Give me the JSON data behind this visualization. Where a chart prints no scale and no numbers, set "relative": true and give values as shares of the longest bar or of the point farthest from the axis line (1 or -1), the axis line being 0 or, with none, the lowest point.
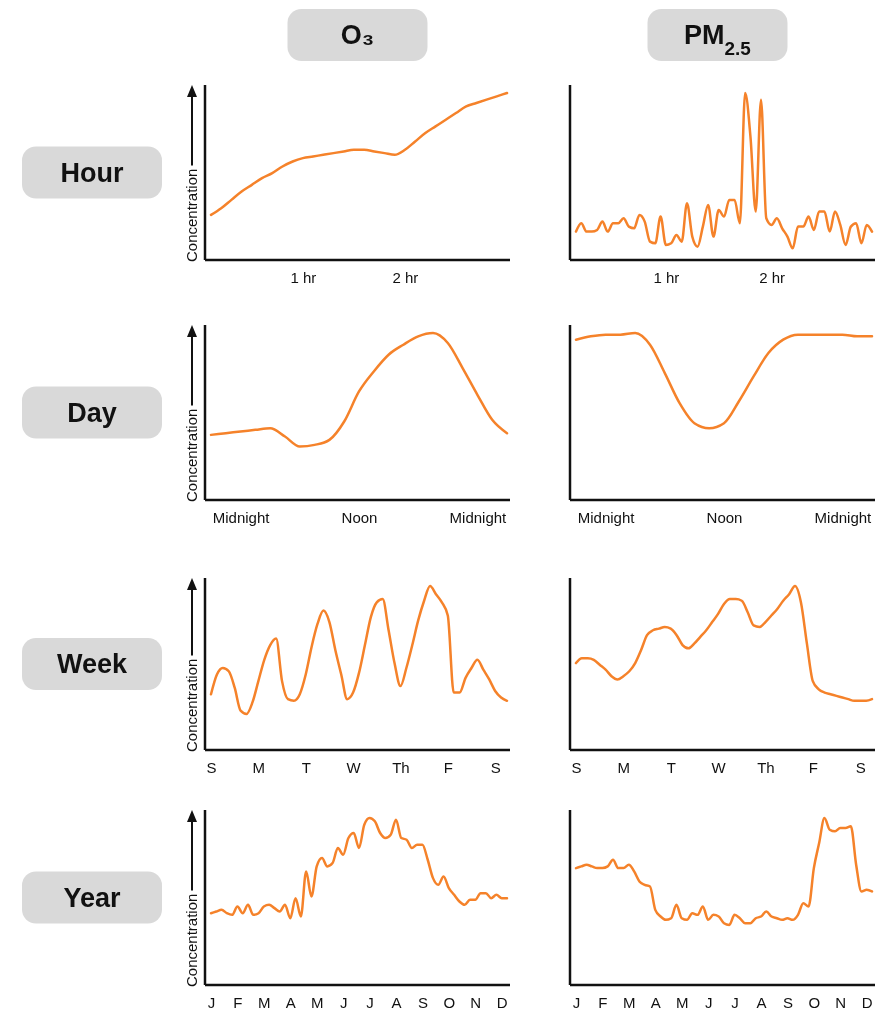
{
  "chart_data": [
    {
      "type": "line",
      "relative": true,
      "title": "O₃",
      "annotations": [
        "Hour"
      ],
      "ylabel": "Concentration",
      "tick_labels": "x",
      "color": "#f5822a",
      "categories": [
        null,
        null,
        null,
        null,
        null,
        null,
        null,
        null,
        null,
        "1 hr",
        null,
        null,
        null,
        null,
        null,
        null,
        null,
        null,
        null,
        "2 hr",
        null,
        null,
        null,
        null,
        null,
        null,
        null,
        null,
        null,
        null
      ],
      "values": [
        0.27,
        0.31,
        0.36,
        0.41,
        0.45,
        0.49,
        0.52,
        0.56,
        0.59,
        0.61,
        0.62,
        0.63,
        0.64,
        0.65,
        0.66,
        0.66,
        0.65,
        0.64,
        0.63,
        0.66,
        0.71,
        0.76,
        0.8,
        0.84,
        0.88,
        0.92,
        0.94,
        0.96,
        0.98,
        1.0
      ]
    },
    {
      "type": "line",
      "relative": true,
      "title": "PM$_{2.5}$",
      "tick_labels": "x",
      "color": "#f5822a",
      "categories": [
        null,
        null,
        null,
        null,
        null,
        null,
        null,
        null,
        null,
        null,
        null,
        null,
        null,
        null,
        null,
        null,
        null,
        "1 hr",
        null,
        null,
        null,
        null,
        null,
        null,
        null,
        null,
        null,
        null,
        null,
        null,
        null,
        null,
        null,
        null,
        null,
        null,
        null,
        "2 hr",
        null,
        null,
        null,
        null,
        null,
        null,
        null,
        null,
        null,
        null,
        null,
        null,
        null,
        null,
        null,
        null,
        null,
        null,
        null
      ],
      "values": [
        0.17,
        0.22,
        0.17,
        0.17,
        0.18,
        0.23,
        0.17,
        0.22,
        0.22,
        0.25,
        0.2,
        0.19,
        0.27,
        0.23,
        0.11,
        0.1,
        0.26,
        0.09,
        0.1,
        0.15,
        0.11,
        0.34,
        0.14,
        0.08,
        0.2,
        0.33,
        0.14,
        0.3,
        0.26,
        0.36,
        0.36,
        0.22,
        1.0,
        0.74,
        0.29,
        0.96,
        0.25,
        0.21,
        0.25,
        0.19,
        0.14,
        0.07,
        0.2,
        0.2,
        0.26,
        0.18,
        0.29,
        0.29,
        0.17,
        0.29,
        0.21,
        0.09,
        0.2,
        0.22,
        0.1,
        0.21,
        0.17
      ]
    },
    {
      "type": "line",
      "relative": true,
      "annotations": [
        "Day"
      ],
      "ylabel": "Concentration",
      "tick_labels": "x",
      "color": "#f5822a",
      "categories": [
        null,
        null,
        "Midnight",
        null,
        null,
        null,
        null,
        null,
        null,
        null,
        "Noon",
        null,
        null,
        null,
        null,
        null,
        null,
        null,
        "Midnight",
        null,
        null
      ],
      "values": [
        0.39,
        0.4,
        0.41,
        0.42,
        0.43,
        0.38,
        0.32,
        0.33,
        0.36,
        0.47,
        0.65,
        0.77,
        0.87,
        0.93,
        0.98,
        1.0,
        0.94,
        0.79,
        0.63,
        0.48,
        0.4
      ]
    },
    {
      "type": "line",
      "relative": true,
      "tick_labels": "x",
      "color": "#f5822a",
      "categories": [
        null,
        null,
        "Midnight",
        null,
        null,
        null,
        null,
        null,
        null,
        null,
        "Noon",
        null,
        null,
        null,
        null,
        null,
        null,
        null,
        "Midnight",
        null,
        null
      ],
      "values": [
        0.96,
        0.98,
        0.99,
        0.99,
        1.0,
        0.93,
        0.76,
        0.58,
        0.46,
        0.43,
        0.46,
        0.59,
        0.74,
        0.88,
        0.96,
        0.99,
        0.99,
        0.99,
        0.99,
        0.98,
        0.98
      ]
    },
    {
      "type": "line",
      "relative": true,
      "annotations": [
        "Week"
      ],
      "ylabel": "Concentration",
      "tick_labels": "x",
      "color": "#f5822a",
      "categories": [
        "S",
        null,
        null,
        null,
        null,
        null,
        null,
        null,
        "M",
        null,
        null,
        null,
        null,
        null,
        null,
        null,
        "T",
        null,
        null,
        null,
        null,
        null,
        null,
        null,
        "W",
        null,
        null,
        null,
        null,
        null,
        null,
        null,
        "Th",
        null,
        null,
        null,
        null,
        null,
        null,
        null,
        "F",
        null,
        null,
        null,
        null,
        null,
        null,
        null,
        "S",
        null,
        null
      ],
      "values": [
        0.34,
        0.46,
        0.5,
        0.48,
        0.38,
        0.24,
        0.22,
        0.29,
        0.42,
        0.55,
        0.64,
        0.68,
        0.42,
        0.31,
        0.3,
        0.34,
        0.46,
        0.63,
        0.77,
        0.85,
        0.78,
        0.61,
        0.46,
        0.31,
        0.35,
        0.47,
        0.64,
        0.81,
        0.9,
        0.92,
        0.73,
        0.53,
        0.39,
        0.5,
        0.64,
        0.79,
        0.91,
        1.0,
        0.95,
        0.9,
        0.82,
        0.35,
        0.35,
        0.44,
        0.5,
        0.55,
        0.49,
        0.43,
        0.36,
        0.32,
        0.3
      ]
    },
    {
      "type": "line",
      "relative": true,
      "tick_labels": "x",
      "color": "#f5822a",
      "categories": [
        "S",
        null,
        null,
        null,
        null,
        null,
        null,
        null,
        "M",
        null,
        null,
        null,
        null,
        null,
        null,
        null,
        "T",
        null,
        null,
        null,
        null,
        null,
        null,
        null,
        "W",
        null,
        null,
        null,
        null,
        null,
        null,
        null,
        "Th",
        null,
        null,
        null,
        null,
        null,
        null,
        null,
        "F",
        null,
        null,
        null,
        null,
        null,
        null,
        null,
        "S",
        null,
        null
      ],
      "values": [
        0.53,
        0.56,
        0.56,
        0.55,
        0.52,
        0.49,
        0.45,
        0.43,
        0.45,
        0.48,
        0.53,
        0.61,
        0.7,
        0.73,
        0.74,
        0.75,
        0.74,
        0.7,
        0.64,
        0.62,
        0.65,
        0.69,
        0.73,
        0.78,
        0.83,
        0.89,
        0.92,
        0.92,
        0.91,
        0.84,
        0.76,
        0.75,
        0.78,
        0.82,
        0.86,
        0.91,
        0.95,
        1.0,
        0.9,
        0.65,
        0.42,
        0.37,
        0.35,
        0.34,
        0.33,
        0.32,
        0.31,
        0.3,
        0.3,
        0.3,
        0.31
      ]
    },
    {
      "type": "line",
      "relative": true,
      "annotations": [
        "Year"
      ],
      "ylabel": "Concentration",
      "tick_labels": "x",
      "color": "#f5822a",
      "categories": [
        "J",
        null,
        null,
        null,
        null,
        "F",
        null,
        null,
        null,
        null,
        "M",
        null,
        null,
        null,
        null,
        "A",
        null,
        null,
        null,
        null,
        "M",
        null,
        null,
        null,
        null,
        "J",
        null,
        null,
        null,
        null,
        "J",
        null,
        null,
        null,
        null,
        "A",
        null,
        null,
        null,
        null,
        "S",
        null,
        null,
        null,
        null,
        "O",
        null,
        null,
        null,
        null,
        "N",
        null,
        null,
        null,
        null,
        "D",
        null
      ],
      "values": [
        0.43,
        0.44,
        0.45,
        0.43,
        0.42,
        0.47,
        0.43,
        0.48,
        0.42,
        0.43,
        0.47,
        0.48,
        0.46,
        0.44,
        0.48,
        0.4,
        0.52,
        0.41,
        0.68,
        0.53,
        0.71,
        0.76,
        0.71,
        0.73,
        0.82,
        0.78,
        0.88,
        0.91,
        0.82,
        0.96,
        1.0,
        0.98,
        0.91,
        0.88,
        0.9,
        0.99,
        0.88,
        0.87,
        0.82,
        0.84,
        0.84,
        0.75,
        0.64,
        0.6,
        0.65,
        0.58,
        0.54,
        0.5,
        0.48,
        0.51,
        0.51,
        0.55,
        0.55,
        0.52,
        0.54,
        0.52,
        0.52
      ]
    },
    {
      "type": "line",
      "relative": true,
      "tick_labels": "x",
      "color": "#f5822a",
      "categories": [
        "J",
        null,
        null,
        null,
        null,
        "F",
        null,
        null,
        null,
        null,
        "M",
        null,
        null,
        null,
        null,
        "A",
        null,
        null,
        null,
        null,
        "M",
        null,
        null,
        null,
        null,
        "J",
        null,
        null,
        null,
        null,
        "J",
        null,
        null,
        null,
        null,
        "A",
        null,
        null,
        null,
        null,
        "S",
        null,
        null,
        null,
        null,
        "O",
        null,
        null,
        null,
        null,
        "N",
        null,
        null,
        null,
        null,
        "D",
        null
      ],
      "values": [
        0.7,
        0.71,
        0.72,
        0.71,
        0.7,
        0.7,
        0.71,
        0.75,
        0.7,
        0.7,
        0.72,
        0.68,
        0.62,
        0.6,
        0.59,
        0.45,
        0.41,
        0.39,
        0.4,
        0.48,
        0.4,
        0.39,
        0.43,
        0.42,
        0.47,
        0.39,
        0.42,
        0.41,
        0.37,
        0.36,
        0.42,
        0.4,
        0.37,
        0.37,
        0.4,
        0.41,
        0.44,
        0.41,
        0.4,
        0.39,
        0.4,
        0.39,
        0.42,
        0.49,
        0.47,
        0.7,
        0.85,
        1.0,
        0.93,
        0.92,
        0.94,
        0.94,
        0.95,
        0.72,
        0.56,
        0.57,
        0.56
      ]
    }
  ]
}
